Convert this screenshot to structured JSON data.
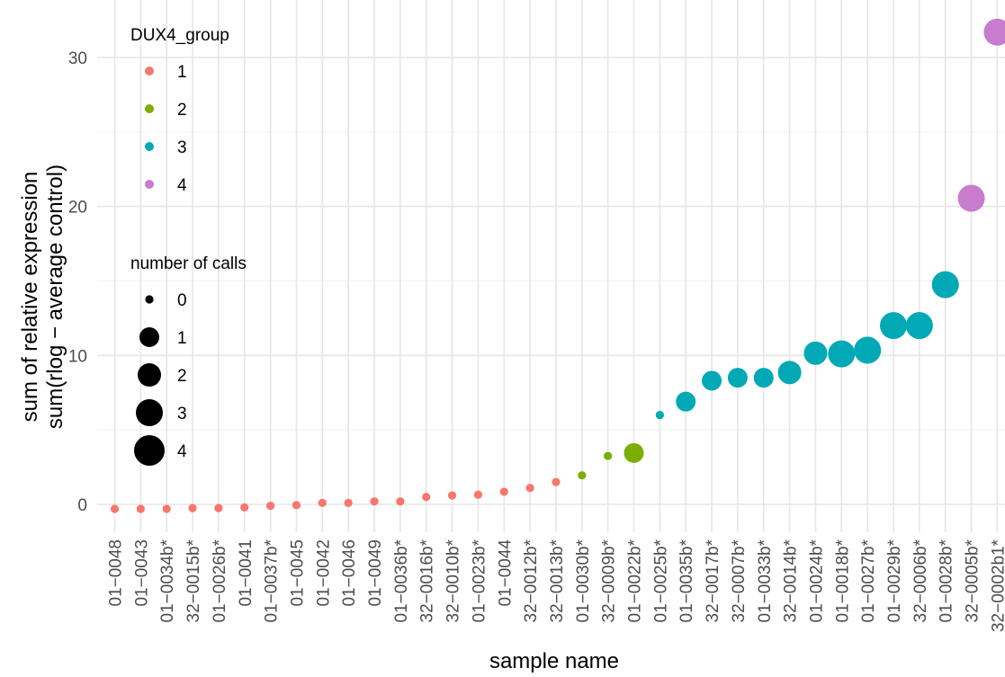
{
  "chart_data": {
    "type": "scatter",
    "xlabel": "sample name",
    "ylabel_lines": [
      "sum of relative expression",
      "sum(rlog − average control)"
    ],
    "ylim": [
      -2.5,
      33
    ],
    "yticks": [
      0,
      10,
      20,
      30
    ],
    "grid": true,
    "legend_placement": "inside-left",
    "categories": [
      "01−0048",
      "01−0043",
      "01−0034b*",
      "32−0015b*",
      "01−0026b*",
      "01−0041",
      "01−0037b*",
      "01−0045",
      "01−0042",
      "01−0046",
      "01−0049",
      "01−0036b*",
      "32−0016b*",
      "32−0010b*",
      "01−0023b*",
      "01−0044",
      "32−0012b*",
      "32−0013b*",
      "01−0030b*",
      "32−0009b*",
      "01−0022b*",
      "01−0025b*",
      "01−0035b*",
      "32−0017b*",
      "32−0007b*",
      "01−0033b*",
      "32−0014b*",
      "01−0024b*",
      "01−0018b*",
      "01−0027b*",
      "01−0029b*",
      "32−0006b*",
      "01−0028b*",
      "32−0005b*",
      "32−0002b1*"
    ],
    "points": [
      {
        "y": -0.3,
        "group": 1,
        "calls": 0
      },
      {
        "y": -0.3,
        "group": 1,
        "calls": 0
      },
      {
        "y": -0.3,
        "group": 1,
        "calls": 0
      },
      {
        "y": -0.25,
        "group": 1,
        "calls": 0
      },
      {
        "y": -0.25,
        "group": 1,
        "calls": 0
      },
      {
        "y": -0.2,
        "group": 1,
        "calls": 0
      },
      {
        "y": -0.1,
        "group": 1,
        "calls": 0
      },
      {
        "y": -0.05,
        "group": 1,
        "calls": 0
      },
      {
        "y": 0.1,
        "group": 1,
        "calls": 0
      },
      {
        "y": 0.1,
        "group": 1,
        "calls": 0
      },
      {
        "y": 0.2,
        "group": 1,
        "calls": 0
      },
      {
        "y": 0.2,
        "group": 1,
        "calls": 0
      },
      {
        "y": 0.5,
        "group": 1,
        "calls": 0
      },
      {
        "y": 0.6,
        "group": 1,
        "calls": 0
      },
      {
        "y": 0.65,
        "group": 1,
        "calls": 0
      },
      {
        "y": 0.85,
        "group": 1,
        "calls": 0
      },
      {
        "y": 1.1,
        "group": 1,
        "calls": 0
      },
      {
        "y": 1.5,
        "group": 1,
        "calls": 0
      },
      {
        "y": 1.95,
        "group": 2,
        "calls": 0
      },
      {
        "y": 3.25,
        "group": 2,
        "calls": 0
      },
      {
        "y": 3.45,
        "group": 2,
        "calls": 1
      },
      {
        "y": 6.0,
        "group": 3,
        "calls": 0
      },
      {
        "y": 6.9,
        "group": 3,
        "calls": 1
      },
      {
        "y": 8.3,
        "group": 3,
        "calls": 1
      },
      {
        "y": 8.5,
        "group": 3,
        "calls": 1
      },
      {
        "y": 8.5,
        "group": 3,
        "calls": 1
      },
      {
        "y": 8.85,
        "group": 3,
        "calls": 2
      },
      {
        "y": 10.15,
        "group": 3,
        "calls": 2
      },
      {
        "y": 10.1,
        "group": 3,
        "calls": 3
      },
      {
        "y": 10.35,
        "group": 3,
        "calls": 3
      },
      {
        "y": 12.0,
        "group": 3,
        "calls": 3
      },
      {
        "y": 12.0,
        "group": 3,
        "calls": 3
      },
      {
        "y": 14.75,
        "group": 3,
        "calls": 3
      },
      {
        "y": 20.55,
        "group": 4,
        "calls": 3
      },
      {
        "y": 31.7,
        "group": 4,
        "calls": 3
      }
    ],
    "color_legend": {
      "title": "DUX4_group",
      "entries": [
        {
          "label": "1",
          "group": 1
        },
        {
          "label": "2",
          "group": 2
        },
        {
          "label": "3",
          "group": 3
        },
        {
          "label": "4",
          "group": 4
        }
      ]
    },
    "size_legend": {
      "title": "number of calls",
      "entries": [
        {
          "label": "0",
          "calls": 0
        },
        {
          "label": "1",
          "calls": 1
        },
        {
          "label": "2",
          "calls": 2
        },
        {
          "label": "3",
          "calls": 3
        },
        {
          "label": "4",
          "calls": 4
        }
      ]
    },
    "group_colors": {
      "1": "#F8766D",
      "2": "#7CAE00",
      "3": "#00A9B5",
      "4": "#C77CCD"
    },
    "legend_key_color": "#000000"
  }
}
